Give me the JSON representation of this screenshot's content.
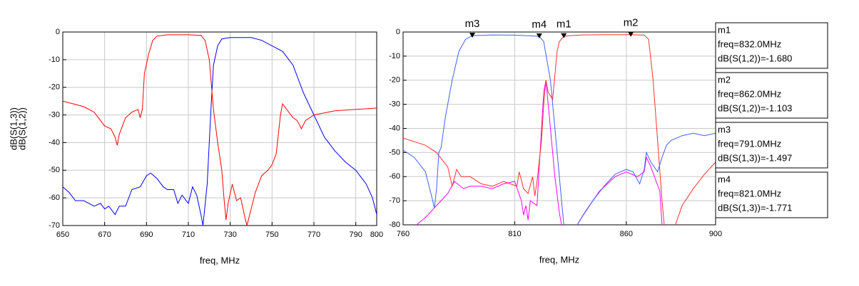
{
  "chart_data": [
    {
      "type": "line",
      "xlabel": "freq, MHz",
      "grid": true,
      "xlim": [
        650,
        800
      ],
      "xticks": [
        650,
        670,
        690,
        710,
        730,
        750,
        770,
        790,
        800
      ],
      "ylim": [
        -70,
        0
      ],
      "yticks": [
        0,
        -10,
        -20,
        -30,
        -40,
        -50,
        -60,
        -70
      ],
      "series": [
        {
          "name": "dB(S(1,3))",
          "color": "#0000ff",
          "x": [
            650,
            653,
            656,
            660,
            665,
            668,
            670,
            672,
            675,
            677,
            680,
            683,
            687,
            690,
            692,
            695,
            698,
            700,
            703,
            705,
            707,
            710,
            712,
            714,
            716,
            717,
            719,
            720,
            721,
            722,
            724,
            726,
            730,
            735,
            740,
            745,
            750,
            755,
            760,
            765,
            770,
            775,
            780,
            785,
            790,
            795,
            798,
            800
          ],
          "values": [
            -56,
            -58,
            -61,
            -61,
            -63,
            -62,
            -64,
            -63,
            -66,
            -63,
            -63,
            -57,
            -56,
            -52,
            -51,
            -53,
            -56,
            -57,
            -57,
            -62,
            -59,
            -62,
            -56,
            -59,
            -66,
            -70,
            -55,
            -40,
            -25,
            -12,
            -5,
            -2.5,
            -2,
            -2,
            -2,
            -3,
            -5,
            -7,
            -12,
            -22,
            -30,
            -38,
            -43,
            -47,
            -50,
            -55,
            -60,
            -66
          ]
        },
        {
          "name": "dB(S(1,2))",
          "color": "#ff0000",
          "x": [
            650,
            660,
            665,
            670,
            673,
            675,
            676,
            677,
            680,
            683,
            686,
            687,
            688,
            689,
            691,
            693,
            695,
            700,
            710,
            716,
            718,
            720,
            722,
            724,
            726,
            727,
            728,
            729,
            731,
            733,
            735,
            737,
            738,
            739,
            742,
            745,
            748,
            750,
            752,
            754,
            755,
            757,
            760,
            762,
            764,
            766,
            770,
            780,
            790,
            800
          ],
          "values": [
            -25,
            -27,
            -29,
            -34,
            -35,
            -38,
            -41,
            -37,
            -31,
            -29,
            -28,
            -31,
            -28,
            -15,
            -8,
            -3,
            -1.5,
            -1,
            -1,
            -1.2,
            -3,
            -10,
            -28,
            -40,
            -50,
            -60,
            -68,
            -62,
            -55,
            -61,
            -60,
            -67,
            -70,
            -67,
            -58,
            -52,
            -50,
            -48,
            -44,
            -30,
            -26,
            -28,
            -31,
            -32,
            -35,
            -32,
            -30,
            -28.5,
            -28,
            -27.5
          ]
        }
      ]
    },
    {
      "type": "line",
      "xlabel": "freq, MHz",
      "grid": true,
      "xlim": [
        760,
        900
      ],
      "xticks": [
        760,
        810,
        860,
        900
      ],
      "ylim": [
        -80,
        0
      ],
      "yticks": [
        0,
        -10,
        -20,
        -30,
        -40,
        -50,
        -60,
        -70,
        -80
      ],
      "series": [
        {
          "color": "#ff00ff",
          "x": [
            766,
            770,
            775,
            780,
            783,
            787,
            790,
            795,
            800,
            805,
            810,
            813,
            814,
            815,
            816,
            817,
            820,
            822,
            823,
            824,
            826,
            828,
            830,
            831,
            834,
            838,
            842,
            848,
            855,
            860,
            865,
            868,
            869,
            871,
            875,
            876
          ],
          "values": [
            -80,
            -77,
            -72,
            -67,
            -62,
            -65,
            -64,
            -64,
            -65,
            -63,
            -62,
            -70,
            -76,
            -72,
            -78,
            -70,
            -72,
            -40,
            -25,
            -20,
            -40,
            -60,
            -75,
            -80,
            null,
            -80,
            -74,
            -66,
            -60,
            -58,
            -60,
            -58,
            -52,
            -56,
            -66,
            -80
          ]
        },
        {
          "color": "#4060ff",
          "x": [
            760,
            765,
            770,
            773,
            774,
            775,
            776,
            777,
            779,
            782,
            785,
            788,
            791,
            800,
            810,
            815,
            821,
            823,
            826,
            829,
            831,
            832,
            835,
            838,
            840,
            845,
            850,
            855,
            860,
            863,
            866,
            868,
            869,
            871,
            874,
            876,
            878,
            880,
            885,
            890,
            895,
            900
          ],
          "values": [
            -49,
            -52,
            -58,
            -69,
            -73,
            -65,
            -50,
            -48,
            -35,
            -20,
            -8,
            -3,
            -1.497,
            -1.2,
            -1.3,
            -1.5,
            -1.771,
            -4,
            -20,
            -50,
            -70,
            -80,
            null,
            -80,
            -77,
            -70,
            -64,
            -59,
            -57,
            -58,
            -63,
            -57,
            -50,
            -54,
            -58,
            -52,
            -47,
            -45,
            -43,
            -42,
            -43,
            -42
          ]
        },
        {
          "color": "#ff3030",
          "x": [
            760,
            770,
            775,
            780,
            782,
            784,
            786,
            790,
            795,
            800,
            805,
            808,
            811,
            812,
            814,
            816,
            818,
            819,
            820,
            822,
            823,
            824,
            825,
            827,
            828,
            829,
            830,
            832,
            840,
            850,
            862,
            868,
            870,
            872,
            874,
            876,
            877,
            880,
            882,
            885,
            890,
            895,
            900
          ],
          "values": [
            -44,
            -47,
            -50,
            -56,
            -64,
            -57,
            -60,
            -60,
            -63,
            -64,
            -62,
            -63,
            -64,
            -58,
            -65,
            -67,
            -60,
            -68,
            -62,
            -45,
            -30,
            -20,
            -25,
            -28,
            -18,
            -8,
            -4,
            -1.68,
            -1.2,
            -1.1,
            -1.103,
            -1.3,
            -3,
            -20,
            -45,
            -70,
            -80,
            null,
            -80,
            -72,
            -65,
            -59,
            -54
          ]
        }
      ],
      "markers": [
        {
          "name": "m1",
          "x": 832,
          "y": -1.68,
          "lines": [
            "freq=832.0MHz",
            "dB(S(1,2))=-1.680"
          ]
        },
        {
          "name": "m2",
          "x": 862,
          "y": -1.103,
          "lines": [
            "freq=862.0MHz",
            "dB(S(1,2))=-1.103"
          ]
        },
        {
          "name": "m3",
          "x": 791,
          "y": -1.497,
          "lines": [
            "freq=791.0MHz",
            "dB(S(1,3))=-1.497"
          ]
        },
        {
          "name": "m4",
          "x": 821,
          "y": -1.771,
          "lines": [
            "freq=821.0MHz",
            "dB(S(1,3))=-1.771"
          ]
        }
      ]
    }
  ]
}
